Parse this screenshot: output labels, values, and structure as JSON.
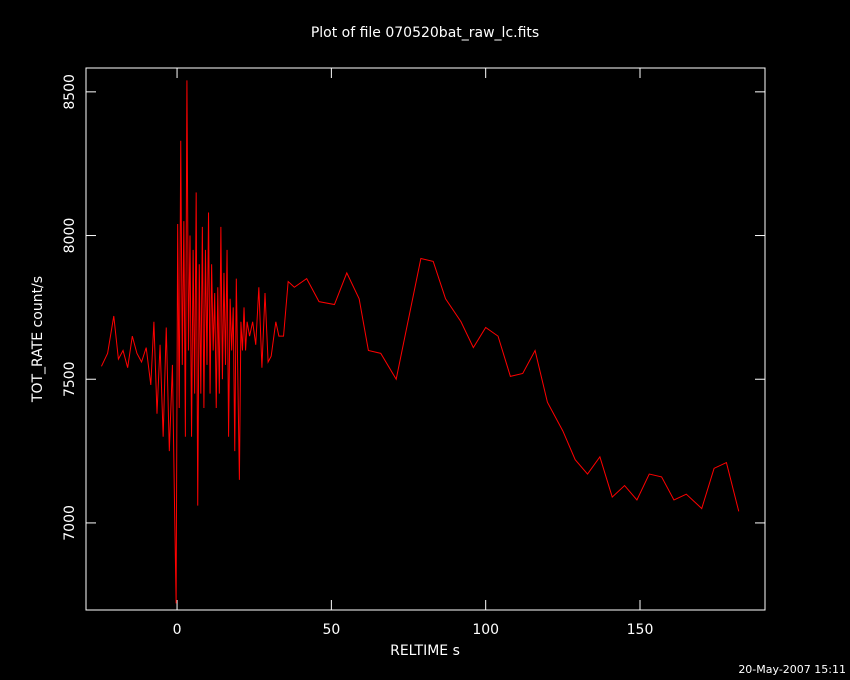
{
  "chart_data": {
    "type": "line",
    "title": "Plot of file 070520bat_raw_lc.fits",
    "x_label": "RELTIME  s",
    "y_label": "TOT_RATE  count/s",
    "annotation": "20-May-2007 15:11",
    "color": "#ff0000",
    "xlim": [
      -29.5,
      190.5
    ],
    "ylim": [
      6697,
      8583
    ],
    "xticks": [
      0,
      50,
      100,
      150
    ],
    "yticks": [
      7000,
      7500,
      8000,
      8500
    ],
    "x": [
      -24.5,
      -22.5,
      -20.5,
      -19,
      -17.5,
      -16,
      -14.5,
      -13,
      -11.5,
      -10,
      -8.5,
      -7.5,
      -6.5,
      -5.5,
      -4.5,
      -3.5,
      -2.5,
      -1.5,
      -0.8,
      -0.3,
      0.2,
      0.7,
      1.2,
      1.7,
      2.2,
      2.7,
      3.2,
      3.7,
      4.2,
      4.7,
      5.2,
      5.7,
      6.2,
      6.7,
      7.2,
      7.7,
      8.2,
      8.7,
      9.2,
      9.7,
      10.2,
      10.7,
      11.2,
      11.7,
      12.2,
      12.7,
      13.2,
      13.7,
      14.2,
      14.7,
      15.2,
      15.7,
      16.2,
      16.7,
      17.2,
      17.7,
      18.2,
      18.7,
      19.2,
      19.7,
      20.2,
      20.7,
      21.2,
      21.7,
      22.2,
      22.7,
      23.5,
      24.5,
      25.5,
      26.5,
      27.5,
      28.5,
      29.5,
      30.5,
      32,
      33,
      34.5,
      36,
      38,
      42,
      46,
      51,
      55,
      59,
      62,
      66,
      71,
      79,
      83,
      87,
      92,
      96,
      100,
      104,
      108,
      112,
      116,
      120,
      125,
      129,
      133,
      137,
      141,
      145,
      149,
      153,
      157,
      161,
      165,
      170,
      174,
      178,
      182
    ],
    "values": [
      7545,
      7590,
      7720,
      7570,
      7600,
      7540,
      7650,
      7590,
      7560,
      7610,
      7480,
      7700,
      7380,
      7620,
      7300,
      7680,
      7250,
      7550,
      7050,
      6720,
      8040,
      7400,
      8330,
      7550,
      8050,
      7300,
      8540,
      7600,
      8000,
      7300,
      7950,
      7450,
      8150,
      7060,
      7900,
      7450,
      8030,
      7400,
      7950,
      7550,
      8080,
      7450,
      7900,
      7600,
      7800,
      7400,
      7820,
      7450,
      8030,
      7500,
      7870,
      7550,
      7950,
      7300,
      7780,
      7600,
      7750,
      7250,
      7850,
      7500,
      7150,
      7700,
      7600,
      7750,
      7600,
      7700,
      7650,
      7700,
      7620,
      7820,
      7540,
      7800,
      7560,
      7580,
      7700,
      7650,
      7650,
      7840,
      7820,
      7850,
      7770,
      7760,
      7870,
      7780,
      7600,
      7590,
      7500,
      7920,
      7910,
      7780,
      7700,
      7610,
      7680,
      7650,
      7510,
      7520,
      7600,
      7420,
      7320,
      7220,
      7170,
      7230,
      7090,
      7130,
      7080,
      7170,
      7160,
      7080,
      7100,
      7050,
      7190,
      7210,
      7040
    ]
  }
}
